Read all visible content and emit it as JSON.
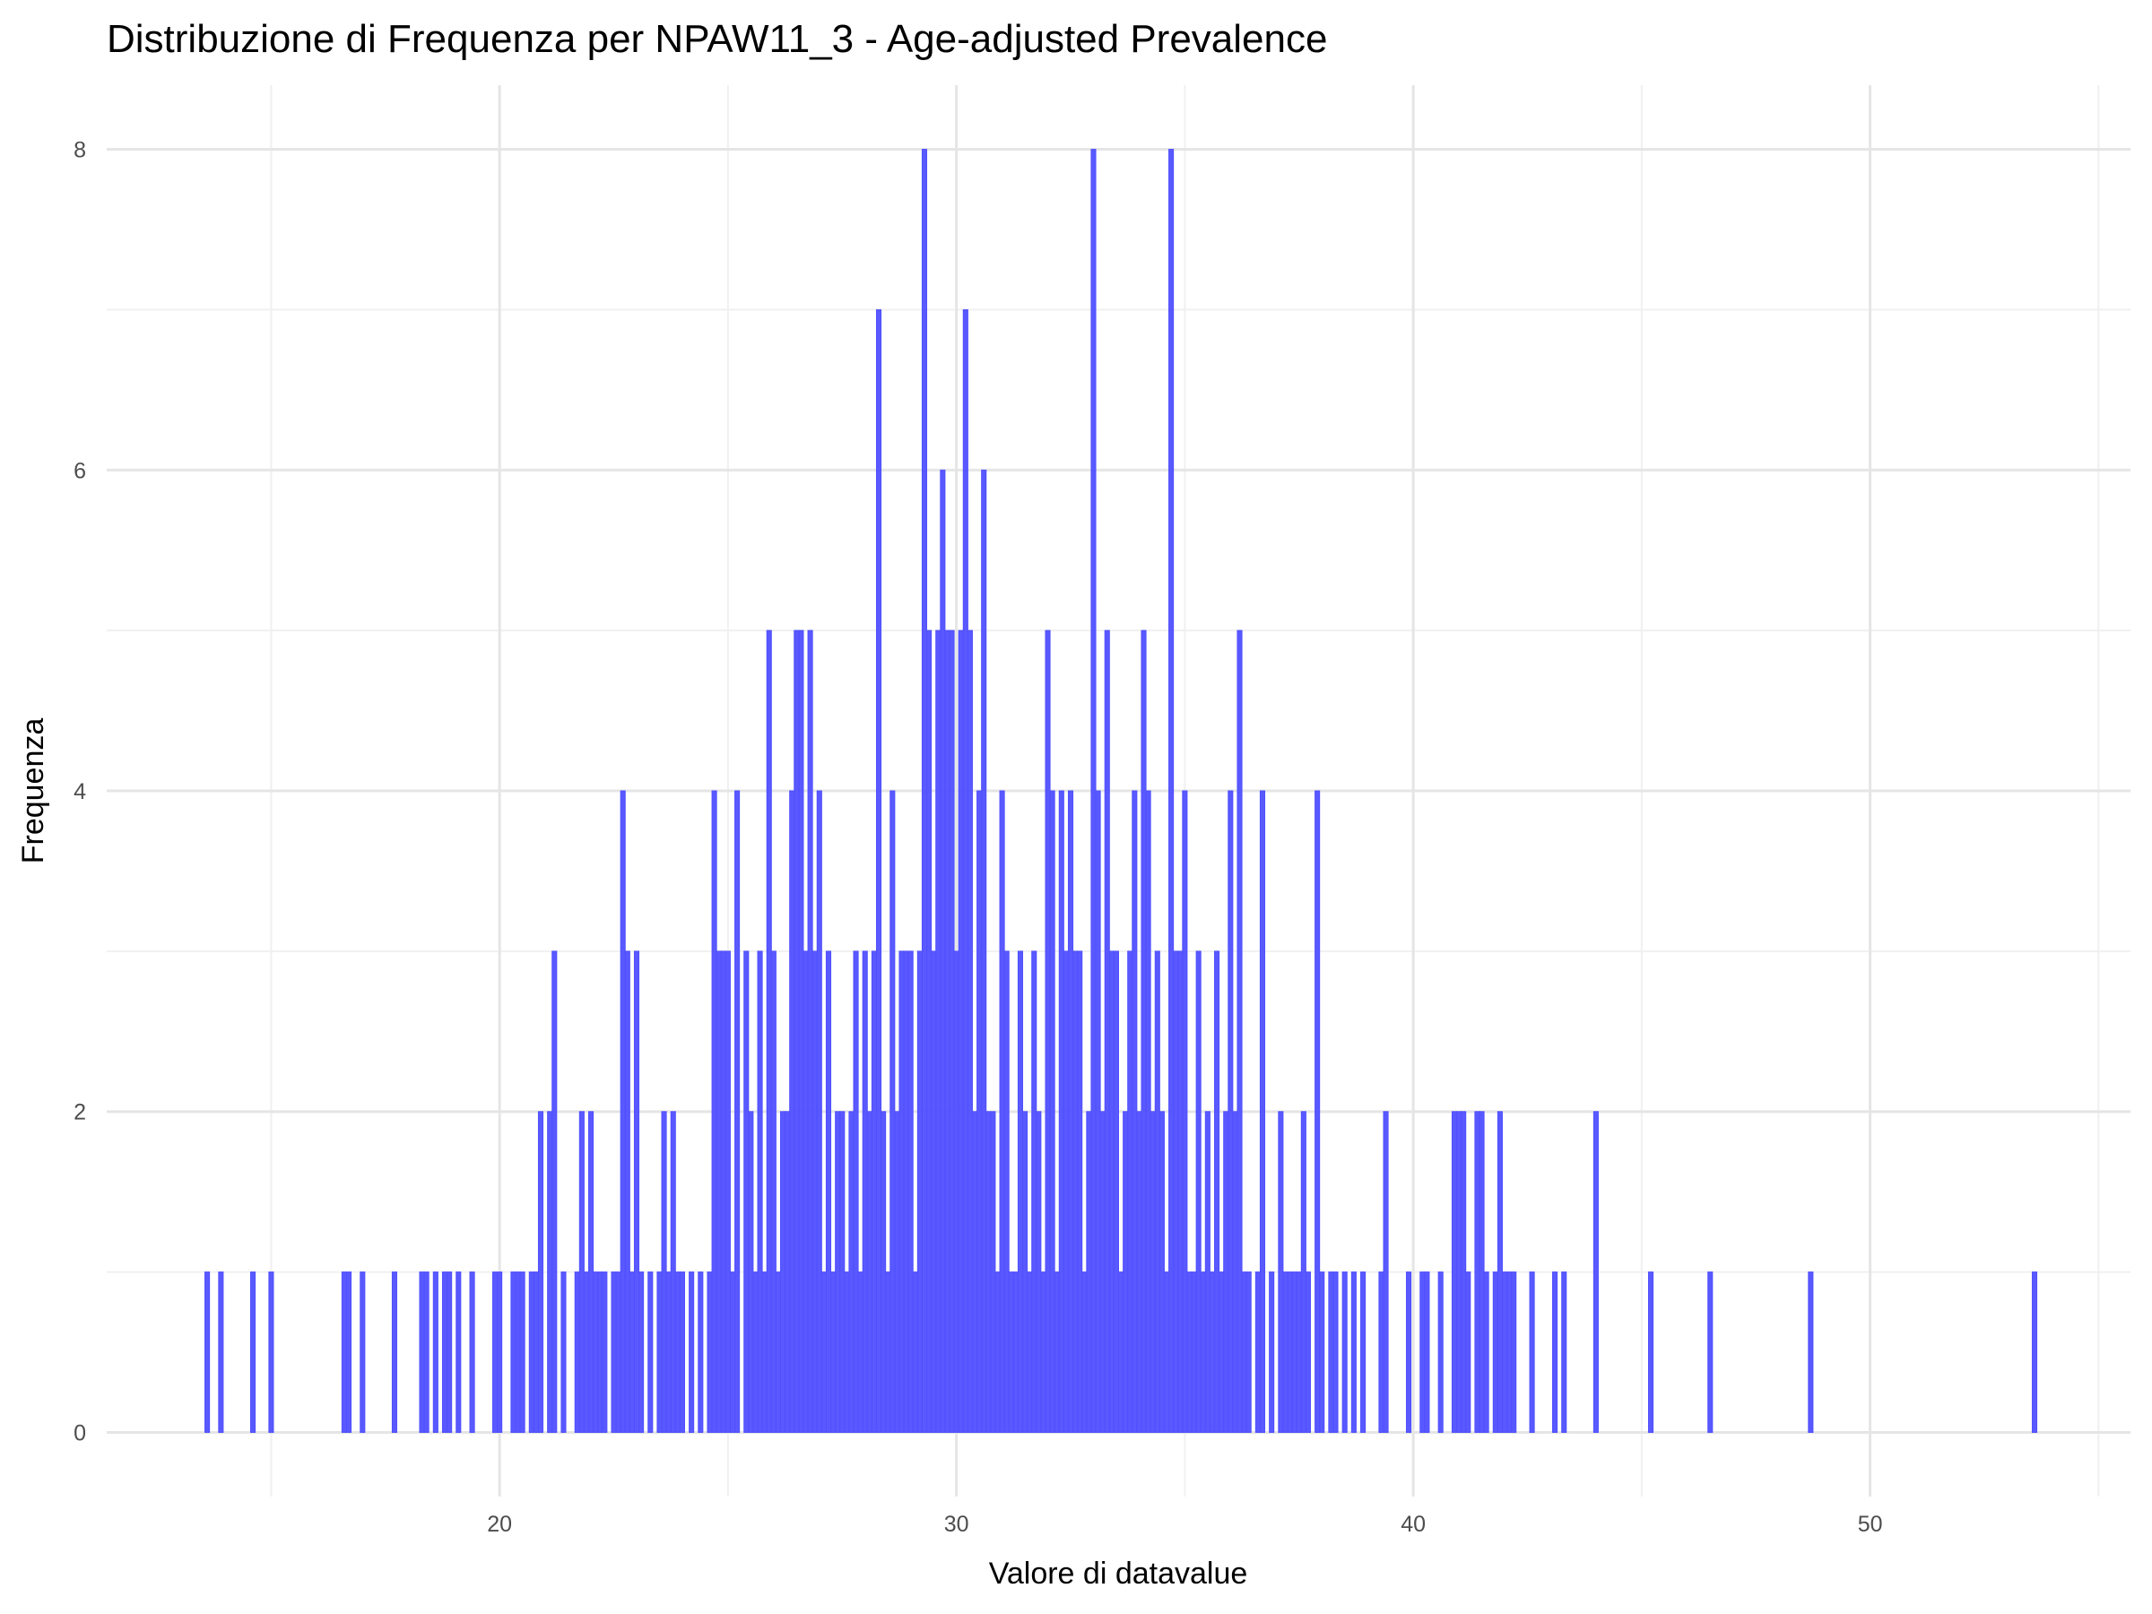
{
  "chart_data": {
    "type": "bar",
    "title": "Distribuzione di Frequenza per NPAW11_3 - Age-adjusted Prevalence",
    "xlabel": "Valore di datavalue",
    "ylabel": "Frequenza",
    "color": "#5050ff",
    "grid": true,
    "xlim": [
      11.4,
      55.7
    ],
    "ylim": [
      -0.4,
      8.4
    ],
    "xticks": [
      20,
      30,
      40,
      50
    ],
    "yticks": [
      0,
      2,
      4,
      6,
      8
    ],
    "x": [
      13.6,
      13.9,
      14.6,
      15.0,
      16.6,
      16.7,
      17.0,
      17.7,
      18.3,
      18.4,
      18.6,
      18.8,
      18.9,
      19.1,
      19.4,
      19.9,
      20.0,
      20.3,
      20.4,
      20.5,
      20.7,
      20.8,
      20.9,
      21.1,
      21.2,
      21.4,
      21.7,
      21.8,
      21.9,
      22.0,
      22.1,
      22.2,
      22.3,
      22.5,
      22.6,
      22.7,
      22.8,
      22.9,
      23.0,
      23.1,
      23.3,
      23.5,
      23.6,
      23.7,
      23.8,
      23.9,
      24.0,
      24.2,
      24.4,
      24.6,
      24.7,
      24.8,
      24.9,
      25.0,
      25.1,
      25.2,
      25.4,
      25.5,
      25.6,
      25.7,
      25.8,
      25.9,
      26.0,
      26.1,
      26.2,
      26.3,
      26.4,
      26.5,
      26.6,
      26.7,
      26.8,
      26.9,
      27.0,
      27.1,
      27.2,
      27.3,
      27.4,
      27.5,
      27.6,
      27.7,
      27.8,
      27.9,
      28.0,
      28.1,
      28.2,
      28.3,
      28.4,
      28.5,
      28.6,
      28.7,
      28.8,
      28.9,
      29.0,
      29.1,
      29.2,
      29.3,
      29.4,
      29.5,
      29.6,
      29.7,
      29.8,
      29.9,
      30.0,
      30.1,
      30.2,
      30.3,
      30.4,
      30.5,
      30.6,
      30.7,
      30.8,
      30.9,
      31.0,
      31.1,
      31.2,
      31.3,
      31.4,
      31.5,
      31.6,
      31.7,
      31.8,
      31.9,
      32.0,
      32.1,
      32.2,
      32.3,
      32.4,
      32.5,
      32.6,
      32.7,
      32.8,
      32.9,
      33.0,
      33.1,
      33.2,
      33.3,
      33.4,
      33.5,
      33.6,
      33.7,
      33.8,
      33.9,
      34.0,
      34.1,
      34.2,
      34.3,
      34.4,
      34.5,
      34.6,
      34.7,
      34.8,
      34.9,
      35.0,
      35.1,
      35.2,
      35.3,
      35.4,
      35.5,
      35.6,
      35.7,
      35.8,
      35.9,
      36.0,
      36.1,
      36.2,
      36.3,
      36.4,
      36.6,
      36.7,
      36.9,
      37.1,
      37.2,
      37.3,
      37.4,
      37.5,
      37.6,
      37.7,
      37.9,
      38.0,
      38.2,
      38.3,
      38.5,
      38.7,
      38.9,
      39.3,
      39.4,
      39.9,
      40.2,
      40.3,
      40.6,
      40.9,
      41.0,
      41.1,
      41.2,
      41.4,
      41.5,
      41.6,
      41.8,
      41.9,
      42.0,
      42.1,
      42.2,
      42.6,
      43.1,
      43.3,
      44.0,
      45.2,
      46.5,
      48.7,
      53.6
    ],
    "values": [
      1,
      1,
      1,
      1,
      1,
      1,
      1,
      1,
      1,
      1,
      1,
      1,
      1,
      1,
      1,
      1,
      1,
      1,
      1,
      1,
      1,
      1,
      2,
      2,
      3,
      1,
      1,
      2,
      1,
      2,
      1,
      1,
      1,
      1,
      1,
      4,
      3,
      1,
      3,
      1,
      1,
      1,
      2,
      1,
      2,
      1,
      1,
      1,
      1,
      1,
      4,
      3,
      3,
      3,
      1,
      4,
      3,
      2,
      1,
      3,
      1,
      5,
      3,
      1,
      2,
      2,
      4,
      5,
      5,
      3,
      5,
      3,
      4,
      1,
      3,
      1,
      2,
      2,
      1,
      2,
      3,
      1,
      3,
      2,
      3,
      7,
      2,
      1,
      4,
      2,
      3,
      3,
      3,
      1,
      3,
      8,
      5,
      3,
      5,
      6,
      5,
      5,
      3,
      5,
      7,
      5,
      2,
      4,
      6,
      2,
      2,
      1,
      4,
      3,
      1,
      1,
      3,
      2,
      1,
      3,
      2,
      1,
      5,
      4,
      1,
      4,
      3,
      4,
      3,
      3,
      1,
      2,
      8,
      4,
      2,
      5,
      3,
      3,
      1,
      2,
      3,
      4,
      2,
      5,
      4,
      2,
      3,
      2,
      1,
      8,
      3,
      3,
      4,
      1,
      1,
      3,
      1,
      2,
      1,
      3,
      1,
      2,
      4,
      2,
      5,
      1,
      1,
      1,
      4,
      1,
      2,
      1,
      1,
      1,
      1,
      2,
      1,
      4,
      1,
      1,
      1,
      1,
      1,
      1,
      1,
      2,
      1,
      1,
      1,
      1,
      2,
      2,
      2,
      1,
      2,
      2,
      1,
      1,
      2,
      1,
      1,
      1,
      1,
      1,
      1,
      2,
      1,
      1,
      1,
      1
    ]
  }
}
